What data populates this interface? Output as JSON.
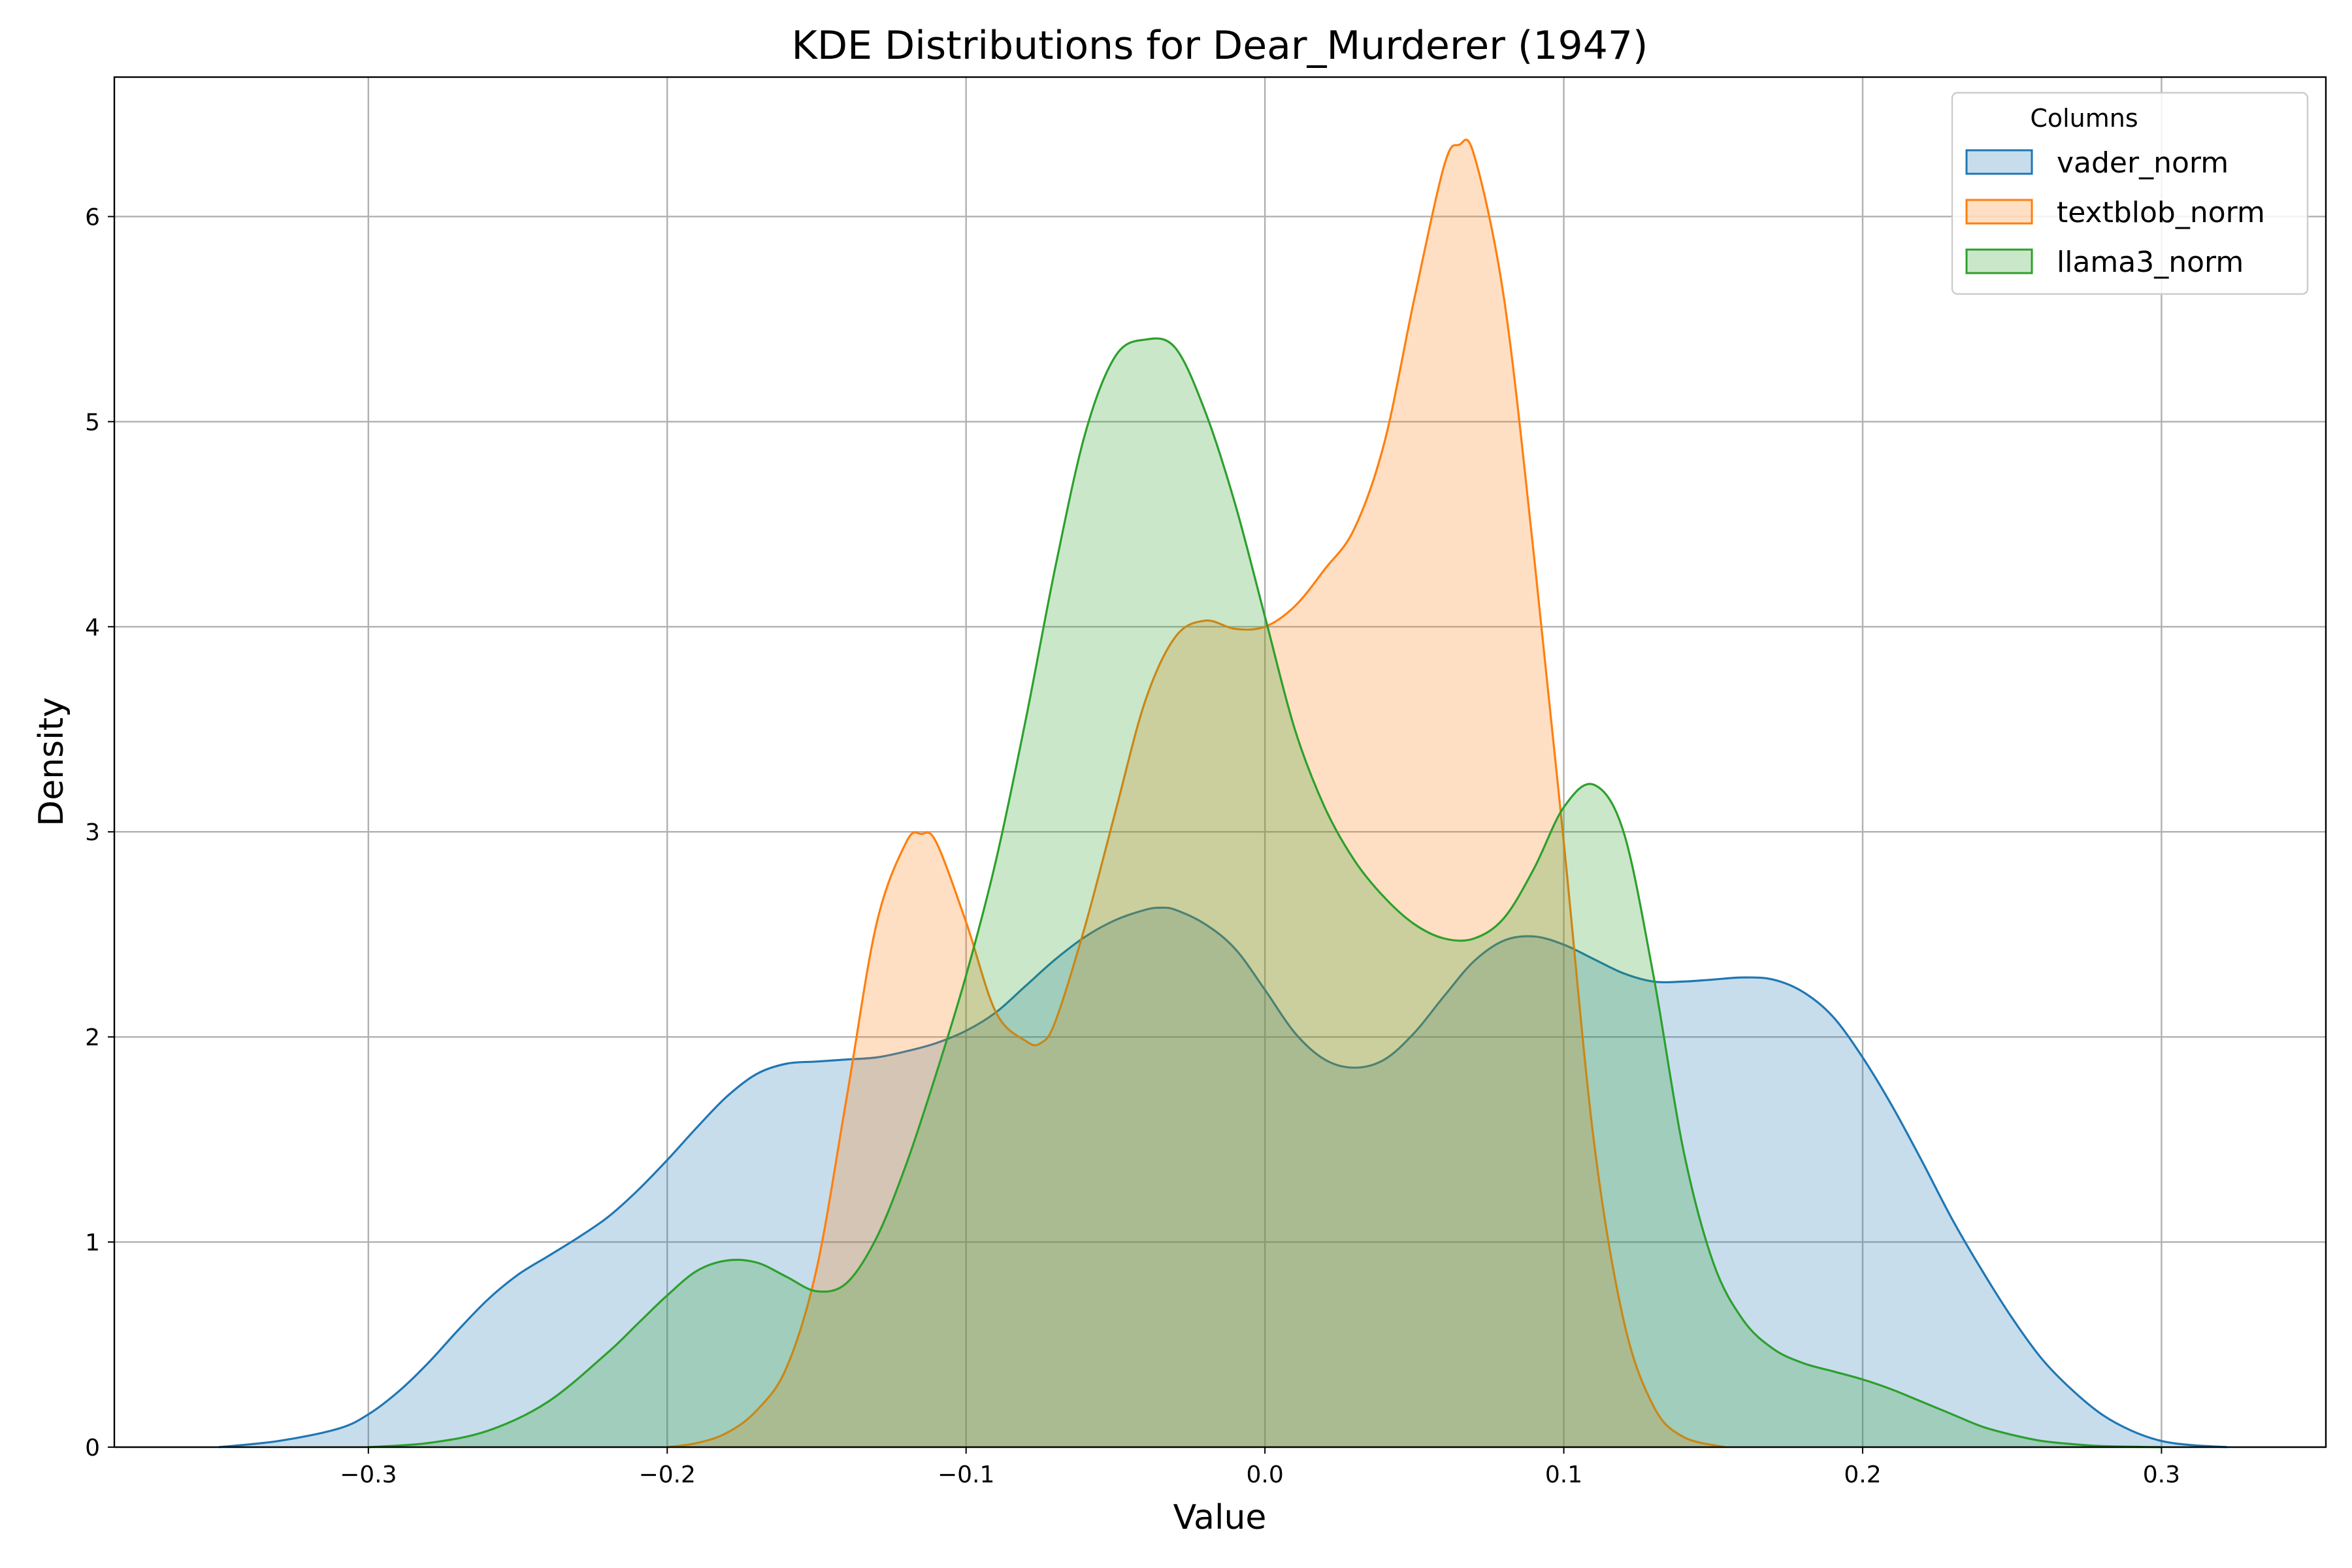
{
  "chart_data": {
    "type": "area",
    "title": "KDE Distributions for Dear_Murderer (1947)",
    "xlabel": "Value",
    "ylabel": "Density",
    "xlim": [
      -0.385,
      0.355
    ],
    "ylim": [
      0,
      6.68
    ],
    "xticks": [
      -0.3,
      -0.2,
      -0.1,
      0.0,
      0.1,
      0.2,
      0.3
    ],
    "xtick_labels": [
      "−0.3",
      "−0.2",
      "−0.1",
      "0.0",
      "0.1",
      "0.2",
      "0.3"
    ],
    "yticks": [
      0,
      1,
      2,
      3,
      4,
      5,
      6
    ],
    "ytick_labels": [
      "0",
      "1",
      "2",
      "3",
      "4",
      "5",
      "6"
    ],
    "grid": true,
    "legend": {
      "title": "Columns",
      "position": "top-right"
    },
    "series": [
      {
        "name": "vader_norm",
        "color": "#1f77b4",
        "x": [
          -0.35,
          -0.33,
          -0.31,
          -0.3,
          -0.29,
          -0.28,
          -0.27,
          -0.26,
          -0.25,
          -0.24,
          -0.23,
          -0.22,
          -0.21,
          -0.2,
          -0.19,
          -0.18,
          -0.17,
          -0.16,
          -0.15,
          -0.14,
          -0.13,
          -0.12,
          -0.11,
          -0.1,
          -0.09,
          -0.08,
          -0.07,
          -0.06,
          -0.05,
          -0.04,
          -0.035,
          -0.03,
          -0.02,
          -0.01,
          0.0,
          0.01,
          0.02,
          0.03,
          0.04,
          0.05,
          0.06,
          0.07,
          0.08,
          0.09,
          0.1,
          0.11,
          0.12,
          0.13,
          0.14,
          0.15,
          0.16,
          0.17,
          0.18,
          0.19,
          0.2,
          0.21,
          0.22,
          0.23,
          0.24,
          0.25,
          0.26,
          0.27,
          0.28,
          0.29,
          0.3,
          0.31,
          0.322
        ],
        "y": [
          0.0,
          0.03,
          0.09,
          0.16,
          0.27,
          0.41,
          0.57,
          0.72,
          0.84,
          0.93,
          1.02,
          1.12,
          1.25,
          1.4,
          1.56,
          1.71,
          1.82,
          1.87,
          1.88,
          1.89,
          1.9,
          1.93,
          1.97,
          2.03,
          2.12,
          2.25,
          2.38,
          2.49,
          2.57,
          2.62,
          2.63,
          2.62,
          2.55,
          2.43,
          2.23,
          2.02,
          1.89,
          1.85,
          1.89,
          2.02,
          2.2,
          2.37,
          2.47,
          2.49,
          2.45,
          2.38,
          2.31,
          2.27,
          2.27,
          2.28,
          2.29,
          2.28,
          2.22,
          2.1,
          1.9,
          1.66,
          1.39,
          1.11,
          0.86,
          0.63,
          0.43,
          0.28,
          0.16,
          0.08,
          0.03,
          0.01,
          0.0
        ]
      },
      {
        "name": "textblob_norm",
        "color": "#ff7f0e",
        "x": [
          -0.2,
          -0.19,
          -0.18,
          -0.17,
          -0.16,
          -0.15,
          -0.14,
          -0.13,
          -0.12,
          -0.115,
          -0.11,
          -0.1,
          -0.09,
          -0.08,
          -0.075,
          -0.07,
          -0.06,
          -0.05,
          -0.04,
          -0.03,
          -0.02,
          -0.01,
          0.0,
          0.01,
          0.02,
          0.03,
          0.04,
          0.05,
          0.06,
          0.065,
          0.07,
          0.08,
          0.09,
          0.1,
          0.11,
          0.12,
          0.13,
          0.14,
          0.154
        ],
        "y": [
          0.0,
          0.02,
          0.07,
          0.18,
          0.39,
          0.87,
          1.7,
          2.55,
          2.95,
          2.99,
          2.95,
          2.56,
          2.12,
          1.98,
          1.97,
          2.08,
          2.55,
          3.1,
          3.64,
          3.95,
          4.03,
          3.99,
          4.0,
          4.1,
          4.28,
          4.48,
          4.9,
          5.6,
          6.25,
          6.35,
          6.3,
          5.6,
          4.35,
          2.95,
          1.5,
          0.62,
          0.2,
          0.05,
          0.0
        ]
      },
      {
        "name": "llama3_norm",
        "color": "#2ca02c",
        "x": [
          -0.3,
          -0.28,
          -0.26,
          -0.24,
          -0.22,
          -0.21,
          -0.2,
          -0.19,
          -0.18,
          -0.17,
          -0.16,
          -0.15,
          -0.14,
          -0.13,
          -0.12,
          -0.11,
          -0.1,
          -0.09,
          -0.08,
          -0.07,
          -0.06,
          -0.05,
          -0.04,
          -0.03,
          -0.02,
          -0.01,
          0.0,
          0.01,
          0.02,
          0.03,
          0.04,
          0.05,
          0.06,
          0.07,
          0.08,
          0.09,
          0.1,
          0.11,
          0.12,
          0.13,
          0.14,
          0.15,
          0.16,
          0.17,
          0.18,
          0.19,
          0.2,
          0.21,
          0.22,
          0.23,
          0.24,
          0.25,
          0.26,
          0.27,
          0.28,
          0.3
        ],
        "y": [
          0.0,
          0.02,
          0.08,
          0.22,
          0.46,
          0.6,
          0.74,
          0.86,
          0.91,
          0.9,
          0.83,
          0.76,
          0.8,
          1.02,
          1.38,
          1.82,
          2.3,
          2.86,
          3.55,
          4.3,
          4.95,
          5.32,
          5.4,
          5.36,
          5.05,
          4.6,
          4.05,
          3.5,
          3.12,
          2.86,
          2.68,
          2.55,
          2.48,
          2.48,
          2.58,
          2.82,
          3.12,
          3.23,
          3.0,
          2.3,
          1.45,
          0.9,
          0.62,
          0.48,
          0.41,
          0.37,
          0.33,
          0.28,
          0.22,
          0.16,
          0.1,
          0.06,
          0.03,
          0.015,
          0.005,
          0.0
        ]
      }
    ]
  }
}
